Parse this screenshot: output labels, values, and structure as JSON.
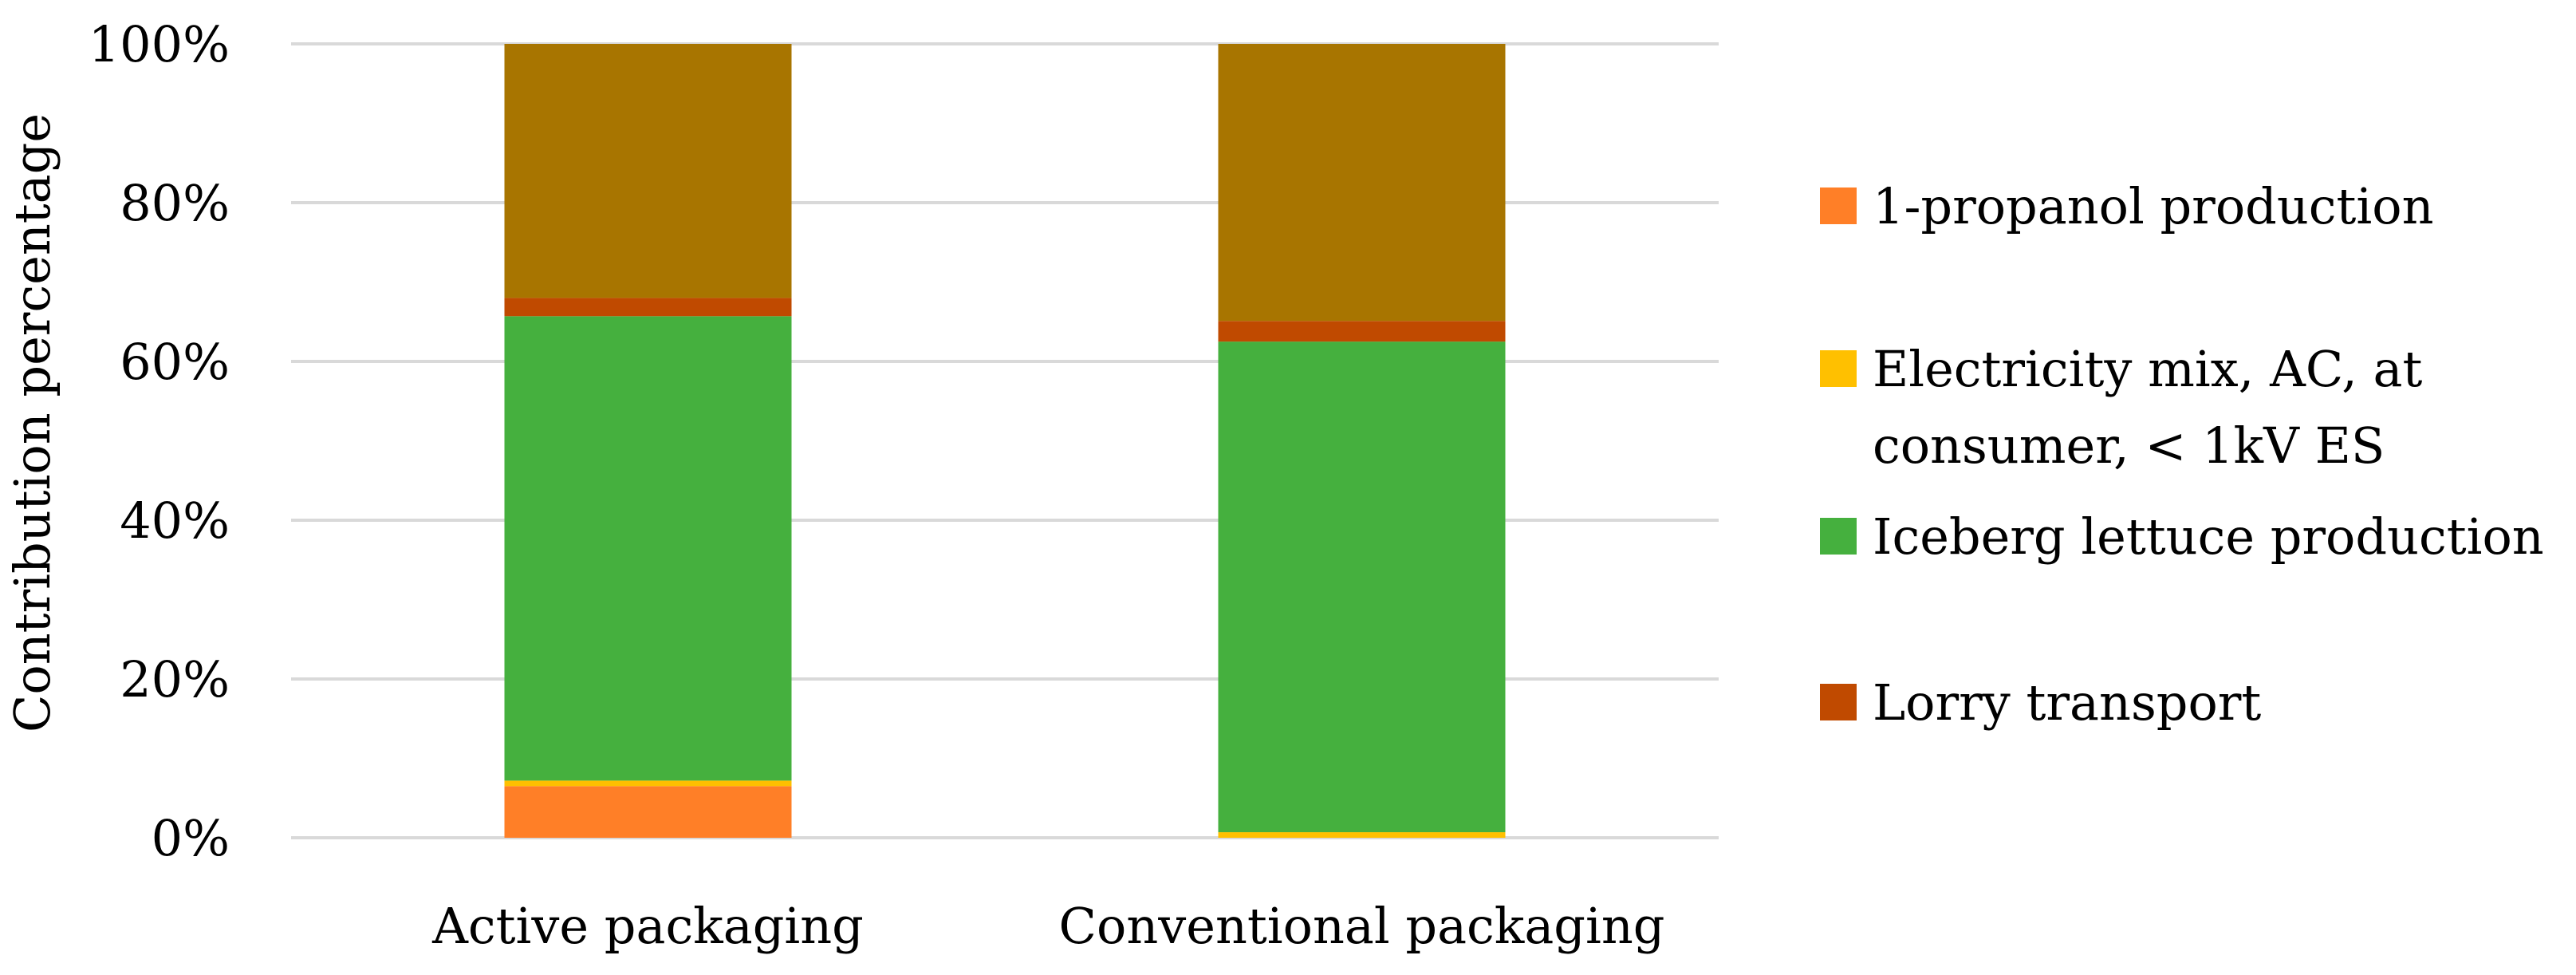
{
  "chart_data": {
    "type": "bar",
    "stacked": true,
    "percent_stacked": true,
    "categories": [
      "Active packaging",
      "Conventional packaging"
    ],
    "series": [
      {
        "name": "1-propanol production",
        "values": [
          6.5,
          0.0
        ],
        "color": "#FF7F27"
      },
      {
        "name": "Electricity mix, AC, at consumer, < 1kV ES",
        "values": [
          0.7,
          0.7
        ],
        "color": "#FFC000"
      },
      {
        "name": "Iceberg lettuce production",
        "values": [
          58.5,
          61.8
        ],
        "color": "#45B03E"
      },
      {
        "name": "Lorry transport",
        "values": [
          2.3,
          2.6
        ],
        "color": "#C04A00"
      },
      {
        "name": "",
        "values": [
          32.0,
          34.9
        ],
        "color": "#A87500"
      }
    ],
    "legend_series": [
      0,
      1,
      2,
      3
    ],
    "legend_position": "right",
    "ylabel": "Contribution percentage",
    "ylim": [
      0,
      100
    ],
    "yticks": [
      "0%",
      "20%",
      "40%",
      "60%",
      "80%",
      "100%"
    ],
    "grid": true,
    "grid_color": "#D9D9D9"
  }
}
